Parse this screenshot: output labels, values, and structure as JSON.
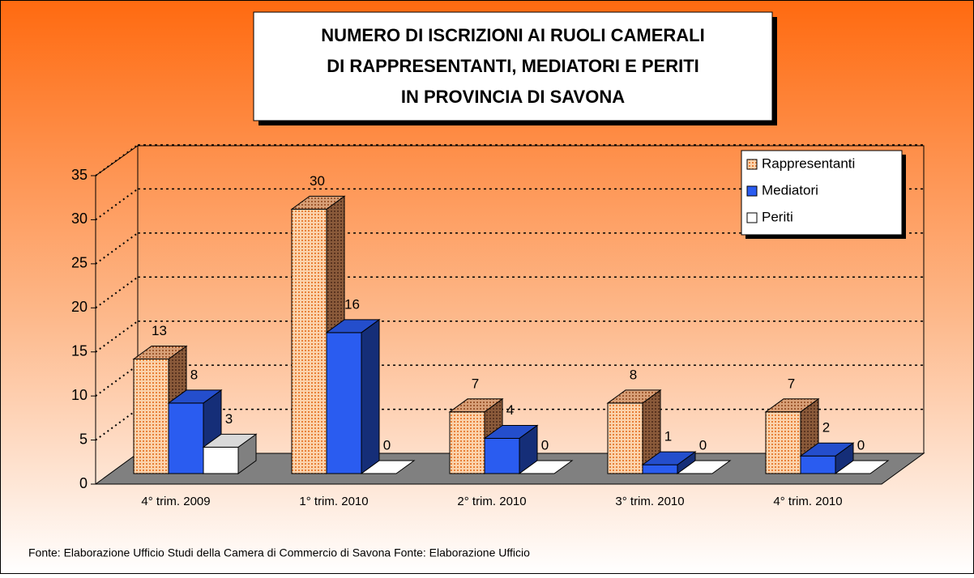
{
  "chart_data": {
    "type": "bar3d",
    "title": [
      "NUMERO DI ISCRIZIONI AI RUOLI CAMERALI",
      "DI RAPPRESENTANTI, MEDIATORI E PERITI",
      "IN PROVINCIA DI SAVONA"
    ],
    "categories": [
      "4° trim. 2009",
      "1° trim. 2010",
      "2° trim. 2010",
      "3° trim. 2010",
      "4° trim. 2010"
    ],
    "series": [
      {
        "name": "Rappresentanti",
        "color": "#f7c08e",
        "values": [
          13,
          30,
          7,
          8,
          7
        ]
      },
      {
        "name": "Mediatori",
        "color": "#2a5cf0",
        "values": [
          8,
          16,
          4,
          1,
          2
        ]
      },
      {
        "name": "Periti",
        "color": "#ffffff",
        "values": [
          3,
          0,
          0,
          0,
          0
        ]
      }
    ],
    "ylim": [
      0,
      35
    ],
    "yticks": [
      0,
      5,
      10,
      15,
      20,
      25,
      30,
      35
    ],
    "grid": true,
    "legend": "top-right",
    "note": "Fonte: Elaborazione Ufficio Studi della  Camera di Commercio di Savona  Fonte:  Elaborazione Ufficio"
  }
}
